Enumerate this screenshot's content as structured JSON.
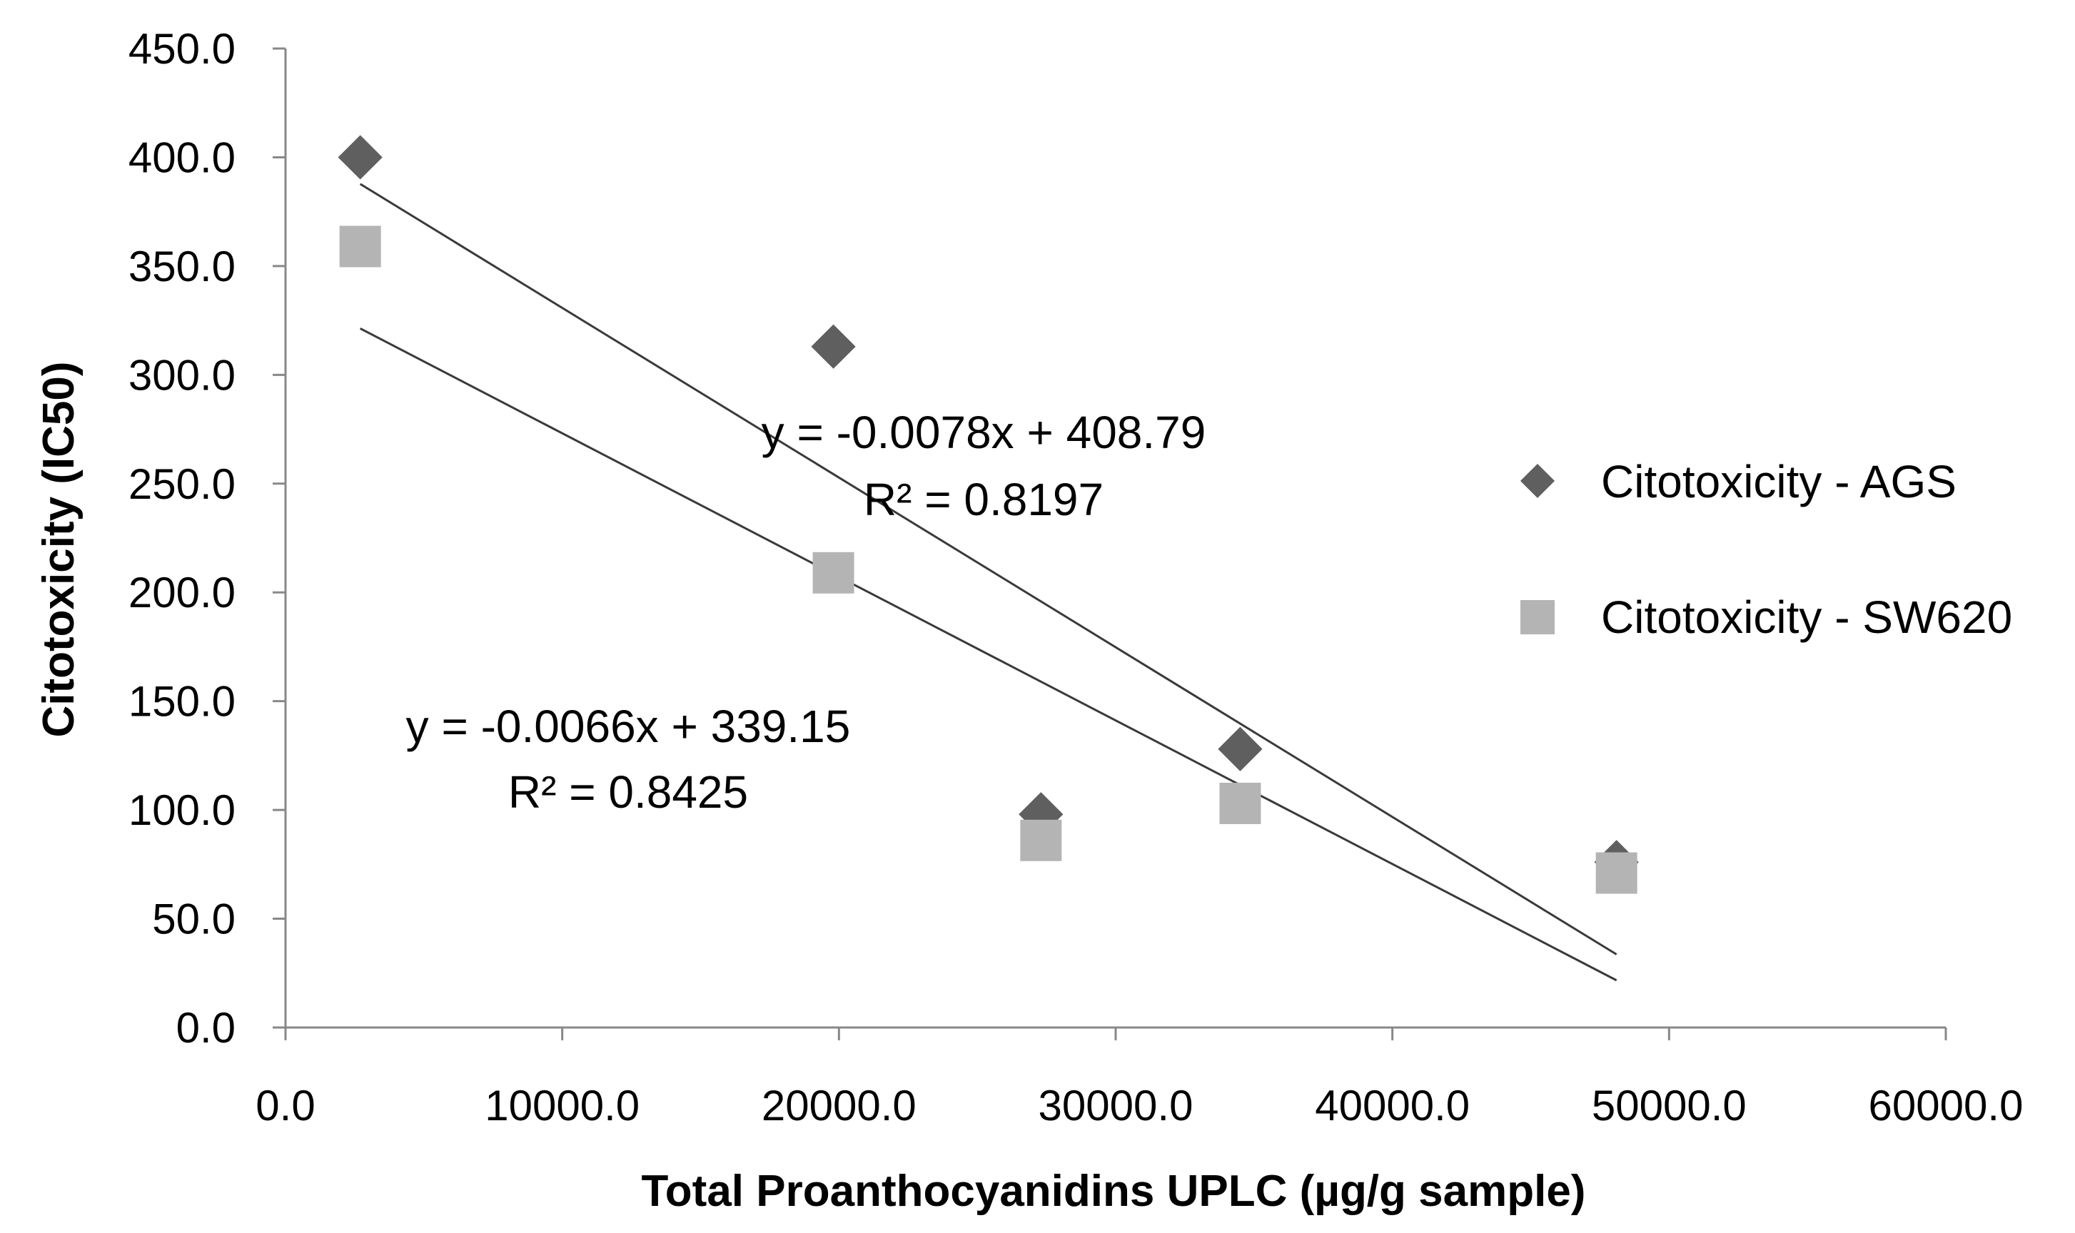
{
  "chart_data": {
    "type": "scatter",
    "title": "",
    "xlabel": "Total Proanthocyanidins UPLC (µg/g sample)",
    "ylabel": "Citotoxicity (IC50)",
    "xlim": [
      0,
      60000
    ],
    "ylim": [
      0,
      450
    ],
    "x_ticks": [
      "0.0",
      "10000.0",
      "20000.0",
      "30000.0",
      "40000.0",
      "50000.0",
      "60000.0"
    ],
    "y_ticks": [
      "0.0",
      "50.0",
      "100.0",
      "150.0",
      "200.0",
      "250.0",
      "300.0",
      "350.0",
      "400.0",
      "450.0"
    ],
    "x_tick_values": [
      0,
      10000,
      20000,
      30000,
      40000,
      50000,
      60000
    ],
    "y_tick_values": [
      0,
      50,
      100,
      150,
      200,
      250,
      300,
      350,
      400,
      450
    ],
    "grid": false,
    "legend_position": "right",
    "series": [
      {
        "name": "Citotoxicity - AGS",
        "marker": "diamond",
        "color": "#5f5f5f",
        "x": [
          2700,
          19800,
          27300,
          34500,
          48100
        ],
        "y": [
          400,
          313,
          98,
          128,
          76
        ],
        "trendline": {
          "slope": -0.0078,
          "intercept": 408.79,
          "x_range": [
            2700,
            48100
          ],
          "equation": "y = -0.0078x + 408.79",
          "r2": "R² = 0.8197"
        }
      },
      {
        "name": "Citotoxicity - SW620",
        "marker": "square",
        "color": "#b4b4b4",
        "x": [
          2700,
          19800,
          27300,
          34500,
          48100
        ],
        "y": [
          359,
          209,
          86,
          103,
          71
        ],
        "trendline": {
          "slope": -0.0066,
          "intercept": 339.15,
          "x_range": [
            2700,
            48100
          ],
          "equation": "y = -0.0066x + 339.15",
          "r2": "R² = 0.8425"
        }
      }
    ]
  }
}
